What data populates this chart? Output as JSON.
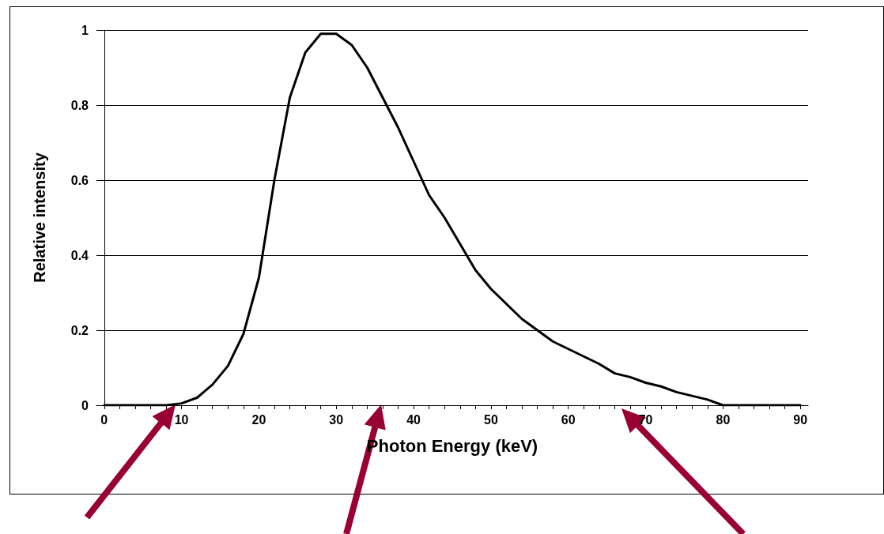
{
  "chart_data": {
    "type": "line",
    "xlabel": "Photon Energy (keV)",
    "ylabel": "Relative intensity",
    "x": [
      0,
      2,
      4,
      6,
      8,
      10,
      12,
      14,
      16,
      18,
      20,
      22,
      24,
      26,
      28,
      30,
      32,
      34,
      36,
      38,
      40,
      42,
      44,
      46,
      48,
      50,
      52,
      54,
      56,
      58,
      60,
      62,
      64,
      66,
      68,
      70,
      72,
      74,
      76,
      78,
      80,
      82,
      84,
      86,
      88,
      90
    ],
    "series": [
      {
        "color": "#000000",
        "values": [
          0,
          0,
          0,
          0,
          0,
          0.005,
          0.02,
          0.055,
          0.105,
          0.19,
          0.34,
          0.6,
          0.82,
          0.94,
          0.99,
          0.99,
          0.96,
          0.9,
          0.82,
          0.74,
          0.65,
          0.56,
          0.5,
          0.43,
          0.36,
          0.31,
          0.27,
          0.23,
          0.2,
          0.17,
          0.15,
          0.13,
          0.11,
          0.085,
          0.075,
          0.06,
          0.05,
          0.035,
          0.025,
          0.015,
          0,
          0,
          0,
          0,
          0,
          0
        ]
      }
    ],
    "xlim": [
      -1,
      91
    ],
    "xticks": [
      0,
      {
        "value": 2,
        "label": null
      },
      {
        "value": 4,
        "label": null
      },
      {
        "value": 6,
        "label": null
      },
      {
        "value": 8,
        "label": null
      },
      10,
      {
        "value": 12,
        "label": null
      },
      {
        "value": 14,
        "label": null
      },
      {
        "value": 16,
        "label": null
      },
      {
        "value": 18,
        "label": null
      },
      20,
      {
        "value": 22,
        "label": null
      },
      {
        "value": 24,
        "label": null
      },
      {
        "value": 26,
        "label": null
      },
      {
        "value": 28,
        "label": null
      },
      30,
      {
        "value": 32,
        "label": null
      },
      {
        "value": 34,
        "label": null
      },
      {
        "value": 36,
        "label": null
      },
      {
        "value": 38,
        "label": null
      },
      40,
      {
        "value": 42,
        "label": null
      },
      {
        "value": 44,
        "label": null
      },
      {
        "value": 46,
        "label": null
      },
      {
        "value": 48,
        "label": null
      },
      50,
      {
        "value": 52,
        "label": null
      },
      {
        "value": 54,
        "label": null
      },
      {
        "value": 56,
        "label": null
      },
      {
        "value": 58,
        "label": null
      },
      60,
      {
        "value": 62,
        "label": null
      },
      {
        "value": 64,
        "label": null
      },
      {
        "value": 66,
        "label": null
      },
      {
        "value": 68,
        "label": null
      },
      70,
      {
        "value": 72,
        "label": null
      },
      {
        "value": 74,
        "label": null
      },
      {
        "value": 76,
        "label": null
      },
      {
        "value": 78,
        "label": null
      },
      80,
      {
        "value": 82,
        "label": null
      },
      {
        "value": 84,
        "label": null
      },
      {
        "value": 86,
        "label": null
      },
      {
        "value": 88,
        "label": null
      },
      90
    ],
    "ylim": [
      0,
      1
    ],
    "yticks": [
      0,
      0.2,
      0.4,
      0.6,
      0.8,
      1
    ],
    "grid": "y",
    "marker": "none",
    "line_style": "solid"
  }
}
